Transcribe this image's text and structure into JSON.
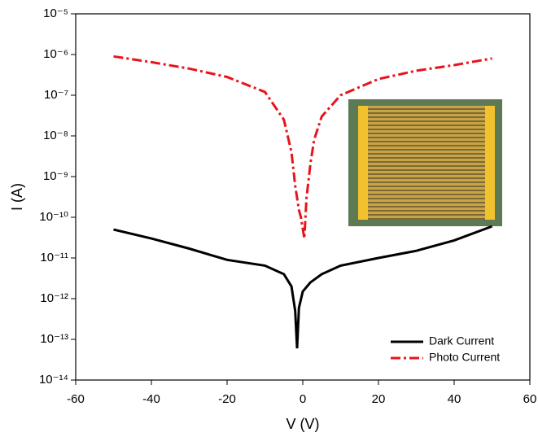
{
  "chart_data": {
    "type": "line",
    "xlabel": "V (V)",
    "ylabel": "I (A)",
    "yscale": "log",
    "xlim": [
      -60,
      60
    ],
    "ylim": [
      1e-14,
      1e-05
    ],
    "xticks": [
      -60,
      -40,
      -20,
      0,
      20,
      40,
      60
    ],
    "yticks": [
      {
        "value": 1e-14,
        "label": "10⁻¹⁴"
      },
      {
        "value": 1e-13,
        "label": "10⁻¹³"
      },
      {
        "value": 1e-12,
        "label": "10⁻¹²"
      },
      {
        "value": 1e-11,
        "label": "10⁻¹¹"
      },
      {
        "value": 1e-10,
        "label": "10⁻¹⁰"
      },
      {
        "value": 1e-09,
        "label": "10⁻⁹"
      },
      {
        "value": 1e-08,
        "label": "10⁻⁸"
      },
      {
        "value": 1e-07,
        "label": "10⁻⁷"
      },
      {
        "value": 1e-06,
        "label": "10⁻⁶"
      },
      {
        "value": 1e-05,
        "label": "10⁻⁵"
      }
    ],
    "legend": "lower right",
    "series": [
      {
        "name": "Dark Current",
        "color": "#000000",
        "style": "solid",
        "x": [
          -50,
          -40,
          -30,
          -20,
          -10,
          -5,
          -3,
          -2,
          -1.5,
          -1,
          0,
          2,
          5,
          10,
          20,
          30,
          40,
          50
        ],
        "values": [
          5e-11,
          3e-11,
          1.7e-11,
          9e-12,
          6.5e-12,
          4e-12,
          2e-12,
          5e-13,
          6e-14,
          6e-13,
          1.5e-12,
          2.5e-12,
          4e-12,
          6.5e-12,
          1e-11,
          1.5e-11,
          2.7e-11,
          6e-11
        ]
      },
      {
        "name": "Photo Current",
        "color": "#e8141b",
        "style": "dash-dot",
        "x": [
          -50,
          -40,
          -30,
          -20,
          -10,
          -5,
          -3,
          -2,
          -1,
          -0.5,
          0.4,
          1,
          2,
          3,
          5,
          10,
          20,
          30,
          40,
          50
        ],
        "values": [
          9e-07,
          6.5e-07,
          4.5e-07,
          2.8e-07,
          1.2e-07,
          2.5e-08,
          4e-09,
          6e-10,
          1.5e-10,
          1e-10,
          3e-11,
          3e-10,
          2e-09,
          8e-09,
          3e-08,
          1e-07,
          2.5e-07,
          4e-07,
          5.5e-07,
          8e-07
        ]
      }
    ]
  }
}
